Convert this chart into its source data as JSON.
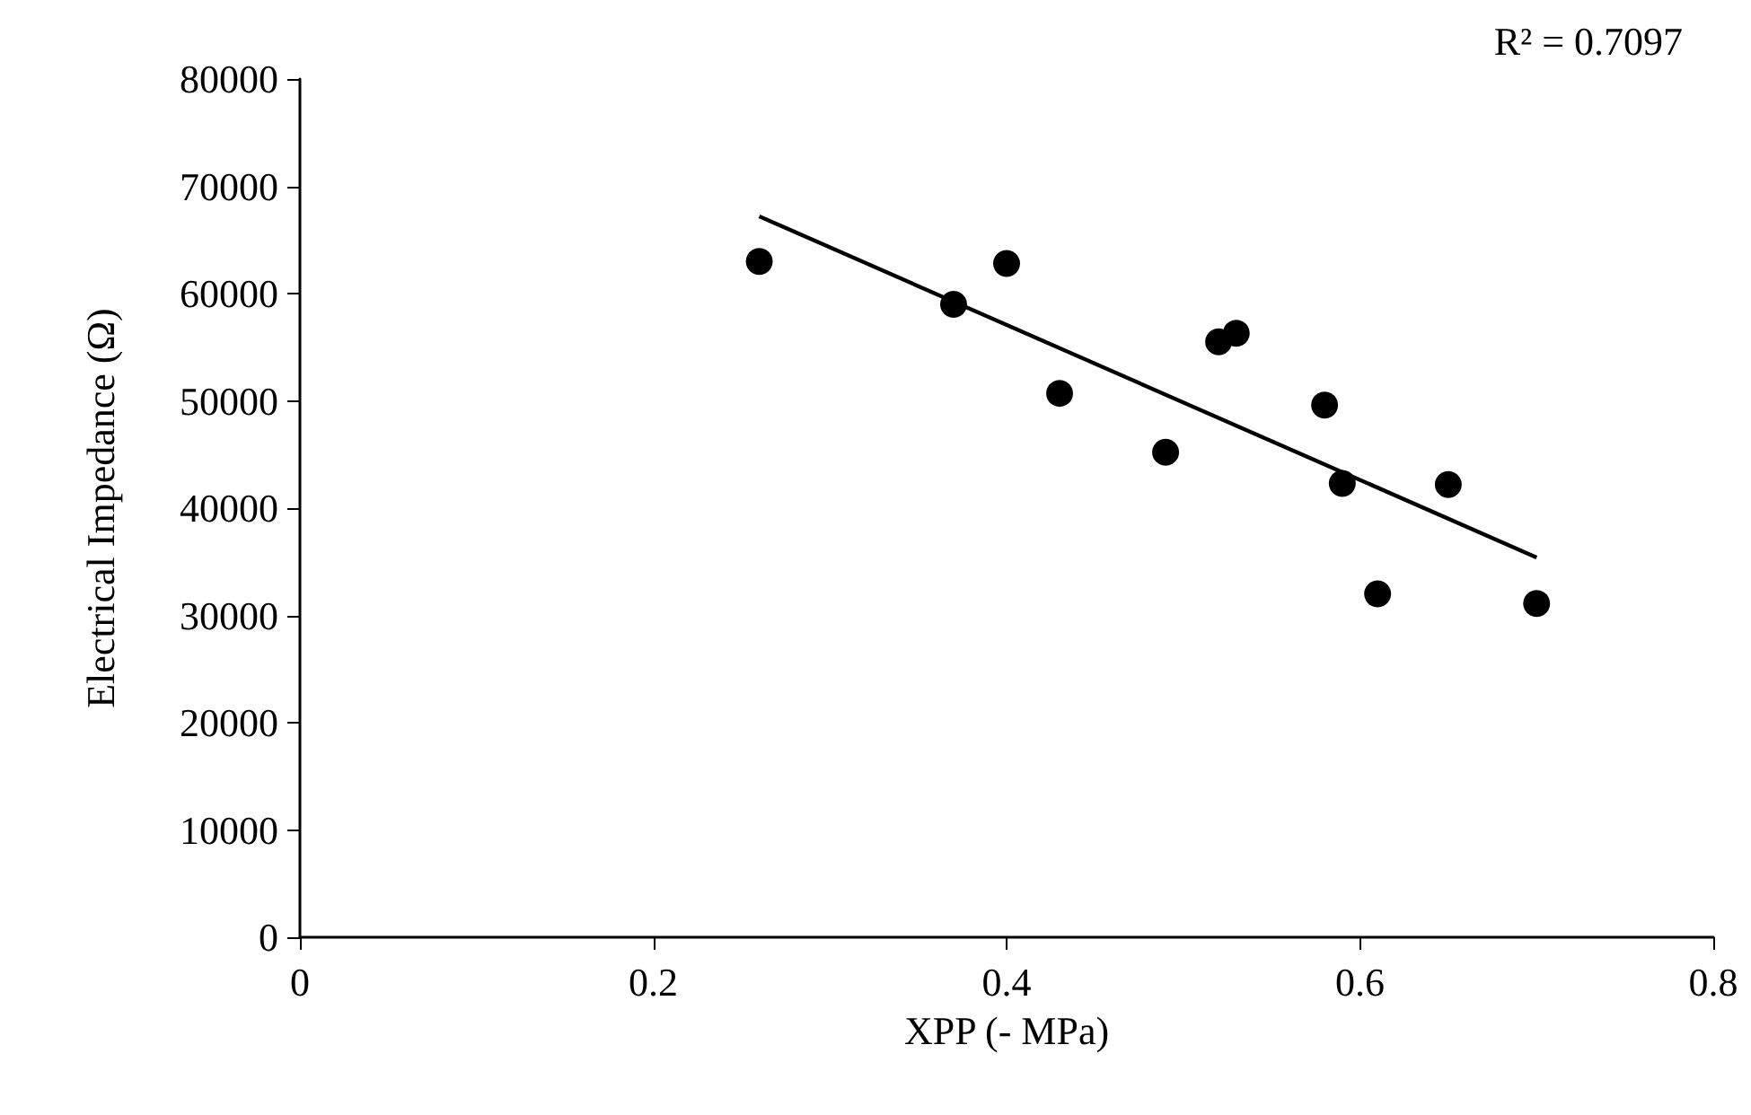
{
  "chart_data": {
    "type": "scatter",
    "xlabel": "XPP (- MPa)",
    "ylabel": "Electrical Impedance (Ω)",
    "annotations": [
      "R² = 0.7097"
    ],
    "x": [
      0.26,
      0.37,
      0.4,
      0.43,
      0.49,
      0.52,
      0.53,
      0.58,
      0.59,
      0.61,
      0.65,
      0.7
    ],
    "series": [
      {
        "color": "#000000",
        "values": [
          63000,
          59000,
          62800,
          50700,
          45200,
          55500,
          56300,
          49600,
          42300,
          32000,
          42200,
          31100
        ]
      },
      {
        "type": "line",
        "color": "#000000",
        "x": [
          0.26,
          0.7
        ],
        "values": [
          67200,
          35400
        ],
        "marker": "none"
      }
    ],
    "marker": "circle",
    "xlim": [
      0,
      0.8
    ],
    "xticks": [
      0,
      0.2,
      0.4,
      0.6,
      0.8
    ],
    "ylim": [
      0,
      80000
    ],
    "yticks": [
      0,
      10000,
      20000,
      30000,
      40000,
      50000,
      60000,
      70000,
      80000
    ],
    "grid": false
  }
}
